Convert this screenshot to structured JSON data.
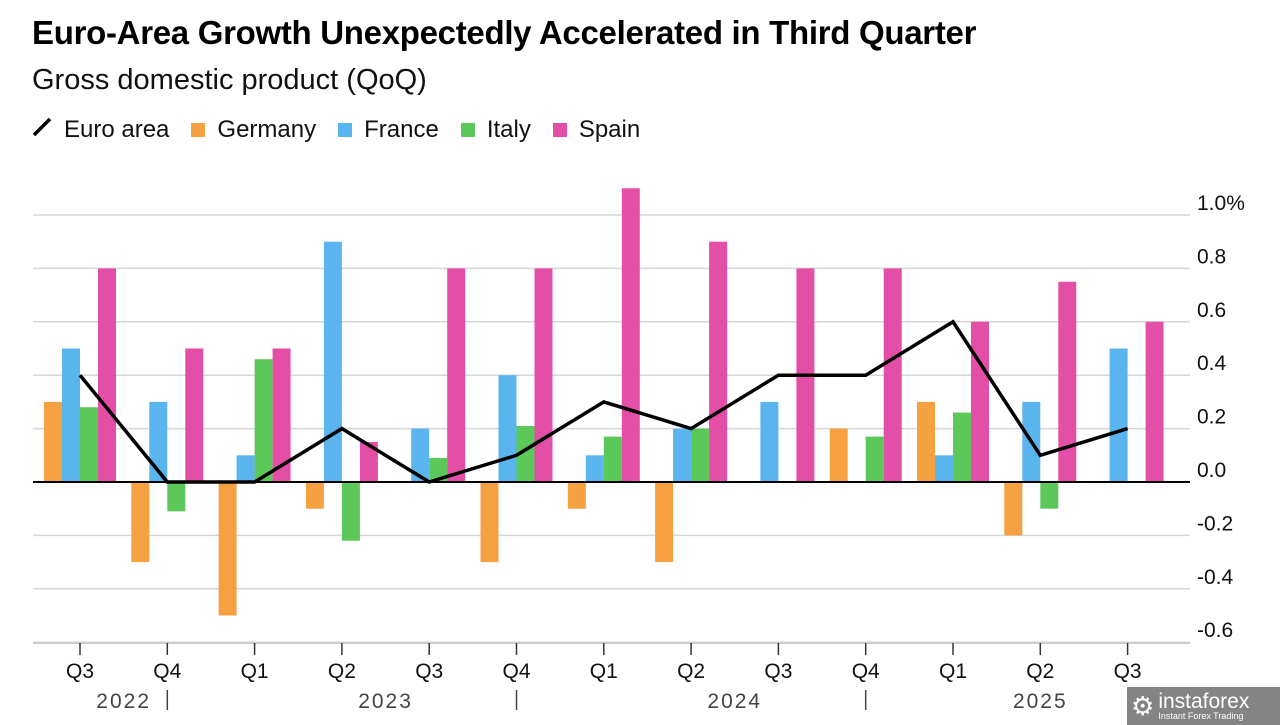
{
  "chart_data": {
    "type": "bar",
    "title": "Euro-Area Growth Unexpectedly Accelerated in Third Quarter",
    "subtitle": "Gross domestic product (QoQ)",
    "categories": [
      "Q3",
      "Q4",
      "Q1",
      "Q2",
      "Q3",
      "Q4",
      "Q1",
      "Q2",
      "Q3",
      "Q4",
      "Q1",
      "Q2",
      "Q3"
    ],
    "years": [
      {
        "label": "2022",
        "from": 0,
        "to": 1
      },
      {
        "label": "2023",
        "from": 2,
        "to": 5
      },
      {
        "label": "2024",
        "from": 6,
        "to": 9
      },
      {
        "label": "2025",
        "from": 10,
        "to": 12
      }
    ],
    "series": [
      {
        "name": "Germany",
        "type": "bar",
        "color": "#f5a142",
        "values": [
          0.3,
          -0.3,
          -0.5,
          -0.1,
          0.0,
          -0.3,
          -0.1,
          -0.3,
          0.0,
          0.2,
          0.3,
          -0.2,
          null
        ]
      },
      {
        "name": "France",
        "type": "bar",
        "color": "#5ab4ee",
        "values": [
          0.5,
          0.3,
          0.1,
          0.9,
          0.2,
          0.4,
          0.1,
          0.2,
          0.3,
          0.0,
          0.1,
          0.3,
          0.5
        ]
      },
      {
        "name": "Italy",
        "type": "bar",
        "color": "#5cc85a",
        "values": [
          0.28,
          -0.11,
          0.46,
          -0.22,
          0.09,
          0.21,
          0.17,
          0.2,
          0.0,
          0.17,
          0.26,
          -0.1,
          null
        ]
      },
      {
        "name": "Spain",
        "type": "bar",
        "color": "#e34ea6",
        "values": [
          0.8,
          0.5,
          0.5,
          0.15,
          0.8,
          0.8,
          1.1,
          0.9,
          0.8,
          0.8,
          0.6,
          0.75,
          0.6
        ]
      },
      {
        "name": "Euro area",
        "type": "line",
        "color": "#000000",
        "values": [
          0.4,
          0.0,
          0.0,
          0.2,
          0.0,
          0.1,
          0.3,
          0.2,
          0.4,
          0.4,
          0.6,
          0.1,
          0.2
        ]
      }
    ],
    "legend_order": [
      "Euro area",
      "Germany",
      "France",
      "Italy",
      "Spain"
    ],
    "ylim": [
      -0.6,
      1.0
    ],
    "yticks": [
      {
        "v": 1.0,
        "label": "1.0%"
      },
      {
        "v": 0.8,
        "label": "0.8"
      },
      {
        "v": 0.6,
        "label": "0.6"
      },
      {
        "v": 0.4,
        "label": "0.4"
      },
      {
        "v": 0.2,
        "label": "0.2"
      },
      {
        "v": 0.0,
        "label": "0.0"
      },
      {
        "v": -0.2,
        "label": "-0.2"
      },
      {
        "v": -0.4,
        "label": "-0.4"
      },
      {
        "v": -0.6,
        "label": "-0.6"
      }
    ],
    "grid": true,
    "legend_placement": "top-left",
    "y_axis_side": "right"
  },
  "watermark": {
    "brand": "instaforex",
    "tagline": "Instant Forex Trading"
  }
}
